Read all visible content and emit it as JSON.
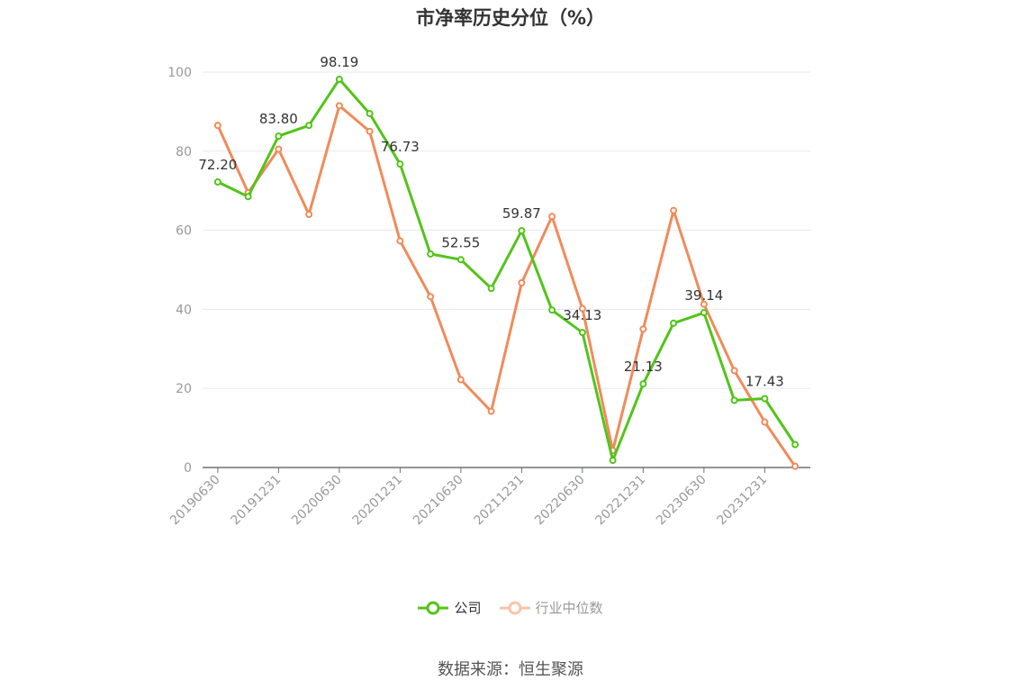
{
  "chart_data": {
    "type": "line",
    "title": "市净率历史分位（%）",
    "xlabel": "",
    "ylabel": "",
    "ylim": [
      0,
      100
    ],
    "y_ticks": [
      0,
      20,
      40,
      60,
      80,
      100
    ],
    "x": [
      "20190630",
      "20190930",
      "20191231",
      "20200331",
      "20200630",
      "20200930",
      "20201231",
      "20210331",
      "20210630",
      "20210930",
      "20211231",
      "20220331",
      "20220630",
      "20220930",
      "20221231",
      "20230331",
      "20230630",
      "20230930",
      "20231231",
      "20240331"
    ],
    "x_tick_labels": [
      "20190630",
      "20191231",
      "20200630",
      "20201231",
      "20210630",
      "20211231",
      "20220630",
      "20221231",
      "20230630",
      "20231231"
    ],
    "grid": true,
    "legend_position": "bottom",
    "series": [
      {
        "name": "公司",
        "color": "#52c41a",
        "values": [
          72.2,
          68.5,
          83.8,
          86.5,
          98.19,
          89.5,
          76.73,
          54.0,
          52.55,
          45.3,
          59.87,
          39.8,
          34.13,
          1.8,
          21.13,
          36.5,
          39.14,
          17.0,
          17.43,
          5.8
        ],
        "labels": [
          "72.20",
          null,
          "83.80",
          null,
          "98.19",
          null,
          "76.73",
          null,
          "52.55",
          null,
          "59.87",
          null,
          "34.13",
          null,
          "21.13",
          null,
          "39.14",
          null,
          "17.43",
          null
        ]
      },
      {
        "name": "行业中位数",
        "color": "#f08b5a",
        "values": [
          86.5,
          69.5,
          80.5,
          64.0,
          91.5,
          85.0,
          57.3,
          43.2,
          22.2,
          14.2,
          46.7,
          63.5,
          40.2,
          4.3,
          35.0,
          65.0,
          41.3,
          24.5,
          11.5,
          0.3
        ]
      }
    ]
  },
  "legend": {
    "company": "公司",
    "industry": "行业中位数"
  },
  "source": "数据来源：恒生聚源"
}
